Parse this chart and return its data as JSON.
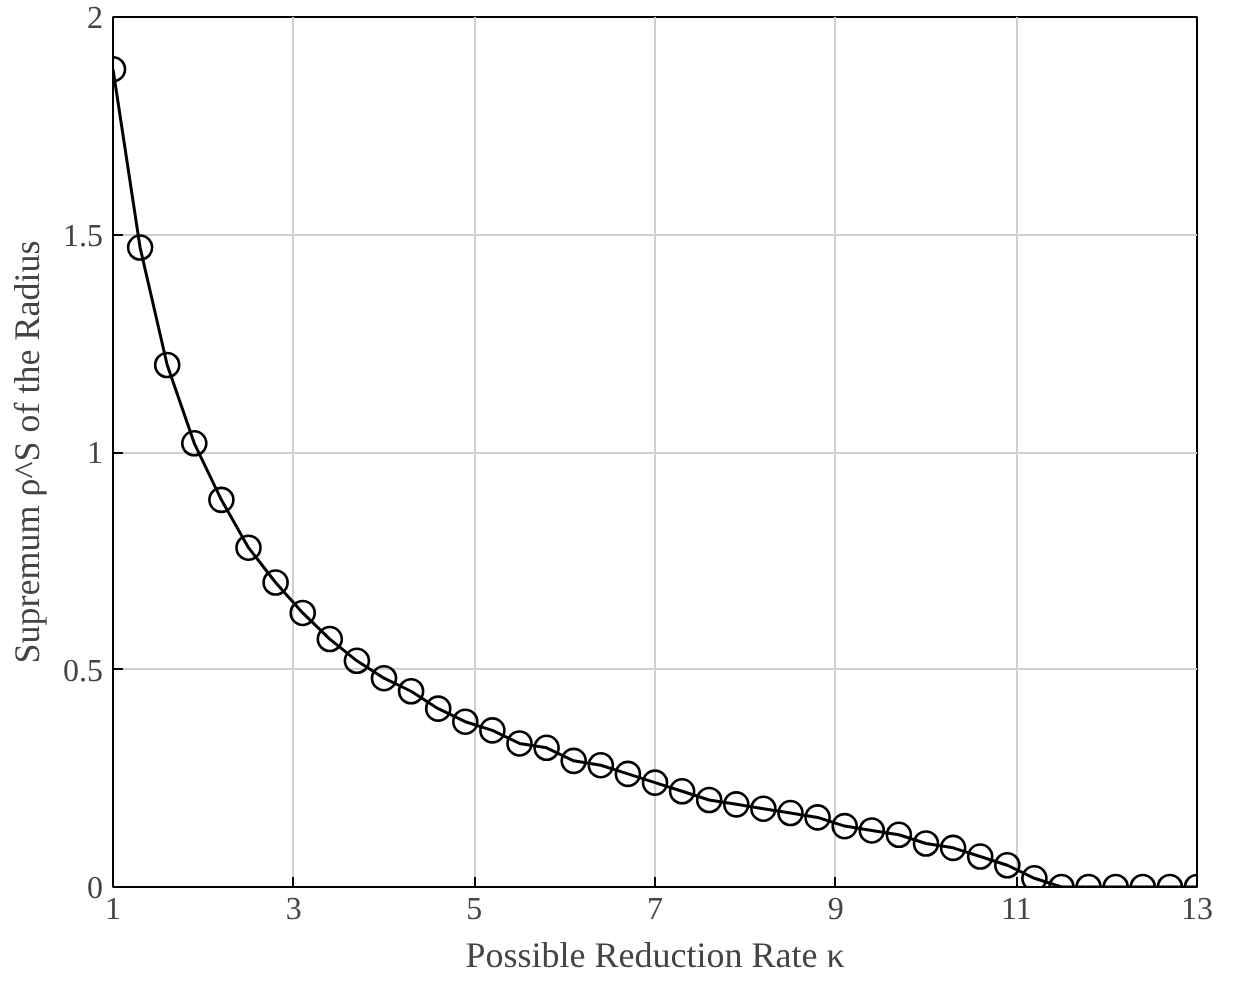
{
  "chart_data": {
    "type": "line",
    "xlabel": "Possible Reduction Rate κ",
    "ylabel": "Supremum ρ^S of the Radius",
    "x": [
      1,
      1.3,
      1.6,
      1.9,
      2.2,
      2.5,
      2.8,
      3.1,
      3.4,
      3.7,
      4,
      4.3,
      4.6,
      4.9,
      5.2,
      5.5,
      5.8,
      6.1,
      6.4,
      6.7,
      7,
      7.3,
      7.6,
      7.9,
      8.2,
      8.5,
      8.8,
      9.1,
      9.4,
      9.7,
      10,
      10.3,
      10.6,
      10.9,
      11.2,
      11.5,
      11.8,
      12.1,
      12.4,
      12.7,
      13
    ],
    "series": [
      {
        "color": "#000000",
        "values": [
          1.88,
          1.47,
          1.2,
          1.02,
          0.89,
          0.78,
          0.7,
          0.63,
          0.57,
          0.52,
          0.48,
          0.45,
          0.41,
          0.38,
          0.36,
          0.33,
          0.32,
          0.29,
          0.28,
          0.26,
          0.24,
          0.22,
          0.2,
          0.19,
          0.18,
          0.17,
          0.16,
          0.14,
          0.13,
          0.12,
          0.1,
          0.09,
          0.07,
          0.05,
          0.02,
          0,
          0,
          0,
          0,
          0,
          0
        ]
      }
    ],
    "xlim": [
      1,
      13
    ],
    "xticks": [
      1,
      3,
      5,
      7,
      9,
      11,
      13
    ],
    "ylim": [
      0,
      2
    ],
    "yticks": [
      0,
      0.5,
      1,
      1.5,
      2
    ],
    "grid": true,
    "marker": "circle",
    "line_style": "solid"
  }
}
